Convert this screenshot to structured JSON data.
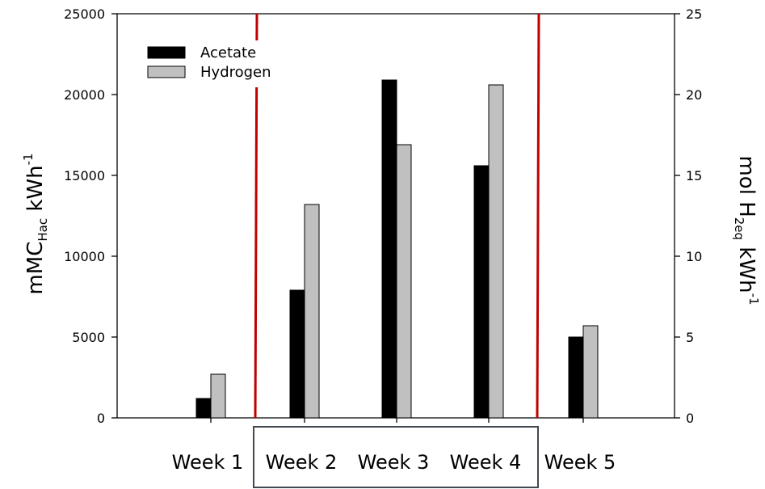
{
  "chart_data": {
    "type": "bar",
    "categories": [
      "Week 1",
      "Week 2",
      "Week 3",
      "Week 4",
      "Week 5"
    ],
    "series": [
      {
        "name": "Acetate",
        "axis": "left",
        "color": "#000000",
        "values": [
          1200,
          7900,
          20900,
          15600,
          5000
        ]
      },
      {
        "name": "Hydrogen",
        "axis": "right",
        "color": "#c0c0c0",
        "values": [
          2.7,
          13.2,
          16.9,
          20.6,
          5.7
        ]
      }
    ],
    "ylabel_left": {
      "main": "mMC",
      "sub": "Hac",
      "unit": " kWh",
      "sup": "-1"
    },
    "ylabel_right": {
      "main": "mol H",
      "sub": "2eq",
      "unit": " kWh",
      "sup": "-1"
    },
    "ylim_left": [
      0,
      25000
    ],
    "ylim_right": [
      0,
      25
    ],
    "yticks_left": [
      "0",
      "5000",
      "10000",
      "15000",
      "20000",
      "25000"
    ],
    "yticks_right": [
      "0",
      "5",
      "10",
      "15",
      "20",
      "25"
    ],
    "legend_position": "top-left",
    "grid": false,
    "dividers_after_categories": [
      1,
      4
    ],
    "divider_color": "#c00000",
    "highlight_box_categories": [
      "Week 2",
      "Week 3",
      "Week 4"
    ],
    "highlight_box_color": "#404850"
  }
}
